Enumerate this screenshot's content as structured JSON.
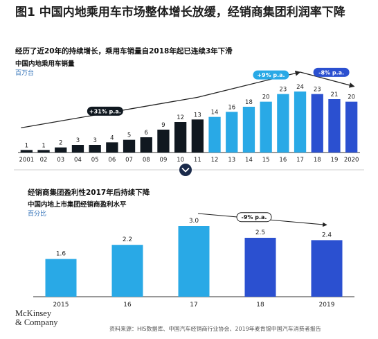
{
  "page": {
    "title": "图1 中国内地乘用车市场整体增长放缓，经销商集团利润率下降",
    "source": "资料来源：HIS数据库、中国汽车经销商行业协会、2019年麦肯锡中国汽车消费者报告",
    "logo_line1": "McKinsey",
    "logo_line2": "& Company",
    "divider_icon": "chevron-down-icon"
  },
  "colors": {
    "dark": "#101820",
    "light_blue": "#29a9e6",
    "royal_blue": "#2b50d0",
    "cagr_pill_31": "#101820",
    "cagr_pill_9": "#29a9e6",
    "cagr_pill_neg8": "#2b50d0"
  },
  "chart_data": [
    {
      "type": "bar",
      "subtitle": "经历了近20年的持续增长，乘用车销量自2018年起已连续3年下滑",
      "heading": "中国内地乘用车销量",
      "unit": "百万台",
      "categories": [
        "2001",
        "02",
        "03",
        "04",
        "05",
        "06",
        "07",
        "08",
        "09",
        "10",
        "11",
        "12",
        "13",
        "14",
        "15",
        "16",
        "17",
        "18",
        "19",
        "2020"
      ],
      "values": [
        1,
        1,
        2,
        3,
        3,
        4,
        5,
        6,
        9,
        12,
        13,
        14,
        16,
        18,
        20,
        23,
        24,
        23,
        21,
        20
      ],
      "bar_color_groups": [
        "dark",
        "dark",
        "dark",
        "dark",
        "dark",
        "dark",
        "dark",
        "dark",
        "dark",
        "dark",
        "dark",
        "light_blue",
        "light_blue",
        "light_blue",
        "light_blue",
        "light_blue",
        "light_blue",
        "royal_blue",
        "royal_blue",
        "royal_blue"
      ],
      "annotations": [
        {
          "text": "+31% p.a.",
          "from": "2001",
          "to": "11"
        },
        {
          "text": "+9% p.a.",
          "from": "12",
          "to": "17"
        },
        {
          "text": "-8% p.a.",
          "from": "17",
          "to": "2020"
        }
      ],
      "ylim": [
        0,
        24
      ]
    },
    {
      "type": "bar",
      "subtitle": "经销商集团盈利性2017年后持续下降",
      "heading": "中国内地上市集团经销商盈利水平",
      "unit": "百分比",
      "categories": [
        "2015",
        "16",
        "17",
        "18",
        "2019"
      ],
      "values": [
        1.6,
        2.2,
        3.0,
        2.5,
        2.4
      ],
      "value_labels": [
        "1.6",
        "2.2",
        "3.0",
        "2.5",
        "2.4"
      ],
      "bar_color_groups": [
        "light_blue",
        "light_blue",
        "light_blue",
        "royal_blue",
        "royal_blue"
      ],
      "annotations": [
        {
          "text": "-9% p.a.",
          "from": "17",
          "to": "2019"
        }
      ],
      "ylim": [
        0,
        3.0
      ]
    }
  ]
}
